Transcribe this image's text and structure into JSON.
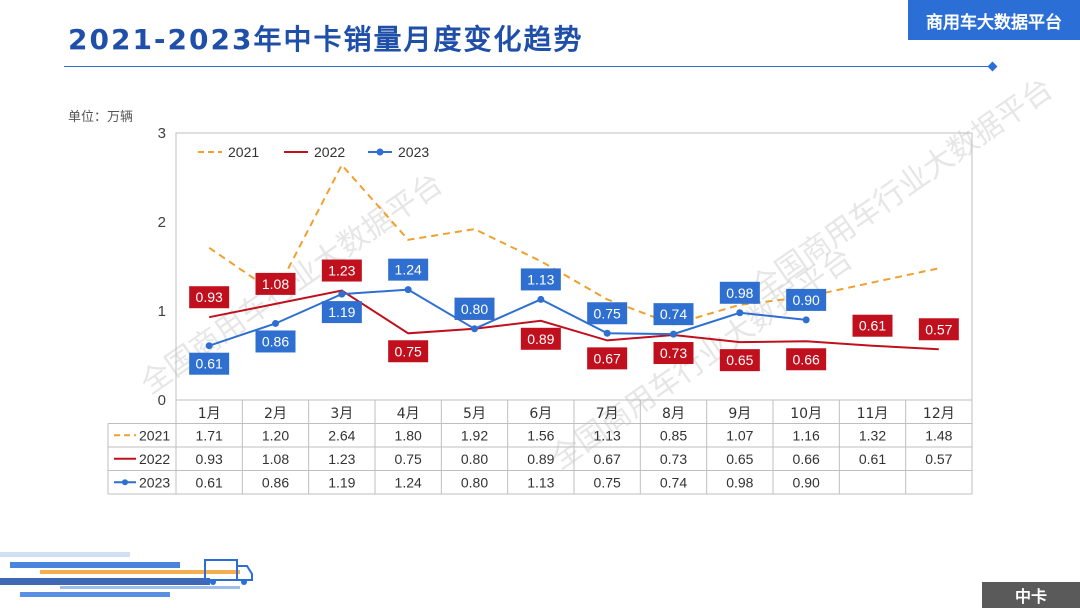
{
  "header": {
    "title": "2021-2023年中卡销量月度变化趋势",
    "brand": "商用车大数据平台",
    "unit": "单位：万辆",
    "footer": "中卡",
    "watermark": "全国商用车行业大数据平台"
  },
  "colors": {
    "accent": "#2b6fd6",
    "title": "#1f4fa8",
    "s2021": "#f0a030",
    "s2022": "#c0101e",
    "s2023": "#2e6fcf"
  },
  "chart_data": {
    "type": "line",
    "categories": [
      "1月",
      "2月",
      "3月",
      "4月",
      "5月",
      "6月",
      "7月",
      "8月",
      "9月",
      "10月",
      "11月",
      "12月"
    ],
    "ylim": [
      0,
      3
    ],
    "yticks": [
      "0",
      "1",
      "2",
      "3"
    ],
    "legend_position": "top-left",
    "grid": false,
    "series": [
      {
        "name": "2021",
        "style": "dashed",
        "values": [
          1.71,
          1.2,
          2.64,
          1.8,
          1.92,
          1.56,
          1.13,
          0.85,
          1.07,
          1.16,
          1.32,
          1.48
        ],
        "table_labels": [
          "1.71",
          "1.20",
          "2.64",
          "1.80",
          "1.92",
          "1.56",
          "1.13",
          "0.85",
          "1.07",
          "1.16",
          "1.32",
          "1.48"
        ]
      },
      {
        "name": "2022",
        "style": "solid",
        "values": [
          0.93,
          1.08,
          1.23,
          0.75,
          0.8,
          0.89,
          0.67,
          0.73,
          0.65,
          0.66,
          0.61,
          0.57
        ],
        "table_labels": [
          "0.93",
          "1.08",
          "1.23",
          "0.75",
          "0.80",
          "0.89",
          "0.67",
          "0.73",
          "0.65",
          "0.66",
          "0.61",
          "0.57"
        ]
      },
      {
        "name": "2023",
        "style": "solid-marker",
        "values": [
          0.61,
          0.86,
          1.19,
          1.24,
          0.8,
          1.13,
          0.75,
          0.74,
          0.98,
          0.9,
          null,
          null
        ],
        "table_labels": [
          "0.61",
          "0.86",
          "1.19",
          "1.24",
          "0.80",
          "1.13",
          "0.75",
          "0.74",
          "0.98",
          "0.90",
          "",
          ""
        ]
      }
    ]
  }
}
